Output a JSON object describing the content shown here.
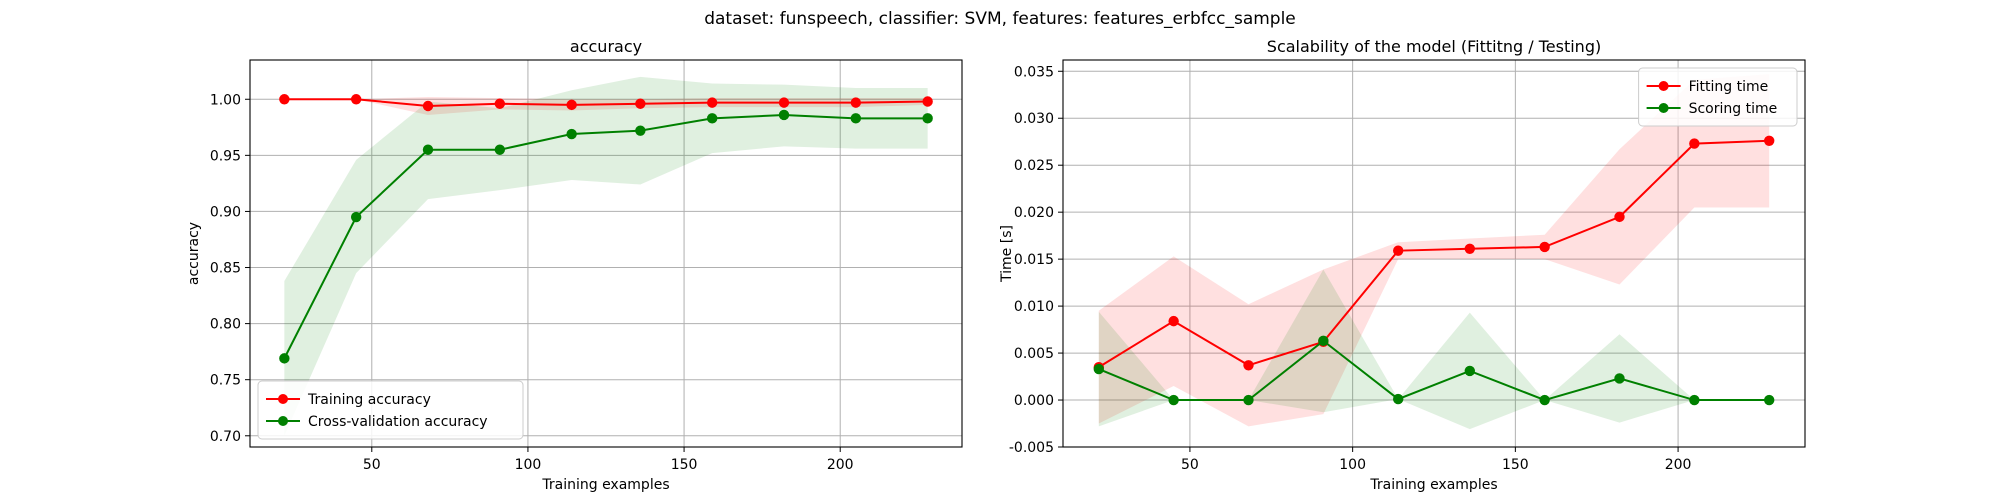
{
  "suptitle": "dataset: funspeech, classifier: SVM, features: features_erbfcc_sample",
  "chart_data": [
    {
      "type": "line",
      "title": "accuracy",
      "xlabel": "Training examples",
      "ylabel": "accuracy",
      "xlim": [
        11,
        239
      ],
      "ylim": [
        0.69,
        1.035
      ],
      "xticks": [
        50,
        100,
        150,
        200
      ],
      "yticks": [
        0.7,
        0.75,
        0.8,
        0.85,
        0.9,
        0.95,
        1.0
      ],
      "ytick_decimals": 2,
      "grid": true,
      "legend_position": "lower-left",
      "x": [
        22,
        45,
        68,
        91,
        114,
        136,
        159,
        182,
        205,
        228
      ],
      "series": [
        {
          "name": "Training accuracy",
          "color": "#ff0000",
          "values": [
            1.0,
            1.0,
            0.994,
            0.996,
            0.995,
            0.996,
            0.997,
            0.997,
            0.997,
            0.998
          ],
          "band_low": [
            1.0,
            1.0,
            0.986,
            0.991,
            0.99,
            0.992,
            0.993,
            0.993,
            0.993,
            0.995
          ],
          "band_high": [
            1.0,
            1.0,
            1.002,
            1.001,
            1.0,
            1.0,
            1.001,
            1.001,
            1.001,
            1.001
          ]
        },
        {
          "name": "Cross-validation accuracy",
          "color": "#008000",
          "values": [
            0.769,
            0.895,
            0.955,
            0.955,
            0.969,
            0.972,
            0.983,
            0.986,
            0.983,
            0.983
          ],
          "band_low": [
            0.7,
            0.845,
            0.911,
            0.919,
            0.928,
            0.924,
            0.952,
            0.958,
            0.956,
            0.956
          ],
          "band_high": [
            0.838,
            0.946,
            0.998,
            0.992,
            1.008,
            1.02,
            1.014,
            1.013,
            1.01,
            1.01
          ]
        }
      ]
    },
    {
      "type": "line",
      "title": "Scalability of the model (Fittitng / Testing)",
      "xlabel": "Training examples",
      "ylabel": "Time [s]",
      "xlim": [
        11,
        239
      ],
      "ylim": [
        -0.005,
        0.0362
      ],
      "xticks": [
        50,
        100,
        150,
        200
      ],
      "yticks": [
        -0.005,
        0.0,
        0.005,
        0.01,
        0.015,
        0.02,
        0.025,
        0.03,
        0.035
      ],
      "ytick_decimals": 3,
      "grid": true,
      "legend_position": "upper-right",
      "x": [
        22,
        45,
        68,
        91,
        114,
        136,
        159,
        182,
        205,
        228
      ],
      "series": [
        {
          "name": "Fitting time",
          "color": "#ff0000",
          "values": [
            0.0035,
            0.0084,
            0.0037,
            0.0062,
            0.0159,
            0.0161,
            0.0163,
            0.0195,
            0.0273,
            0.0276
          ],
          "band_low": [
            -0.0025,
            0.0015,
            -0.0028,
            -0.0015,
            0.015,
            0.015,
            0.015,
            0.0123,
            0.0205,
            0.0205
          ],
          "band_high": [
            0.0095,
            0.0153,
            0.0102,
            0.0139,
            0.0168,
            0.0172,
            0.0176,
            0.0267,
            0.0341,
            0.0347
          ]
        },
        {
          "name": "Scoring time",
          "color": "#008000",
          "values": [
            0.0033,
            0.0,
            0.0,
            0.0063,
            0.0001,
            0.0031,
            0.0,
            0.0023,
            0.0,
            0.0
          ],
          "band_low": [
            -0.0028,
            0.0,
            0.0,
            -0.0013,
            0.0001,
            -0.0031,
            0.0,
            -0.0024,
            0.0,
            0.0
          ],
          "band_high": [
            0.0094,
            0.0,
            0.0,
            0.0139,
            0.0001,
            0.0093,
            0.0,
            0.007,
            0.0,
            0.0
          ]
        }
      ]
    }
  ]
}
